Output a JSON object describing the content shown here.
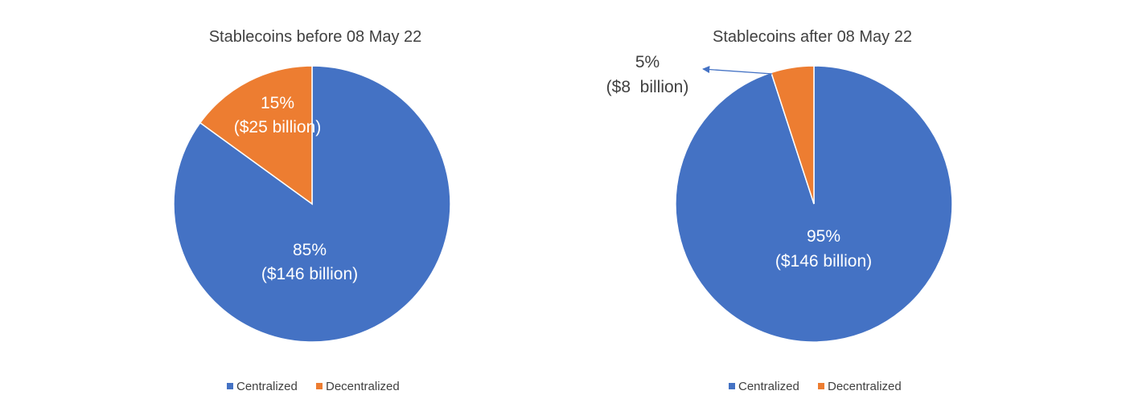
{
  "chart_data": [
    {
      "type": "pie",
      "title": "Stablecoins before 08 May 22",
      "slices": [
        {
          "name": "Centralized",
          "value": 85,
          "label_pct": "85%",
          "label_amount": "($146 billion)",
          "color": "#4472C4"
        },
        {
          "name": "Decentralized",
          "value": 15,
          "label_pct": "15%",
          "label_amount": "($25 billion)",
          "color": "#ED7D31"
        }
      ],
      "legend": [
        "Centralized",
        "Decentralized"
      ],
      "legend_position": "bottom"
    },
    {
      "type": "pie",
      "title": "Stablecoins after 08 May 22",
      "slices": [
        {
          "name": "Centralized",
          "value": 95,
          "label_pct": "95%",
          "label_amount": "($146 billion)",
          "color": "#4472C4"
        },
        {
          "name": "Decentralized",
          "value": 5,
          "label_pct": "5%",
          "label_amount": "($8  billion)",
          "color": "#ED7D31"
        }
      ],
      "legend": [
        "Centralized",
        "Decentralized"
      ],
      "legend_position": "bottom"
    }
  ]
}
